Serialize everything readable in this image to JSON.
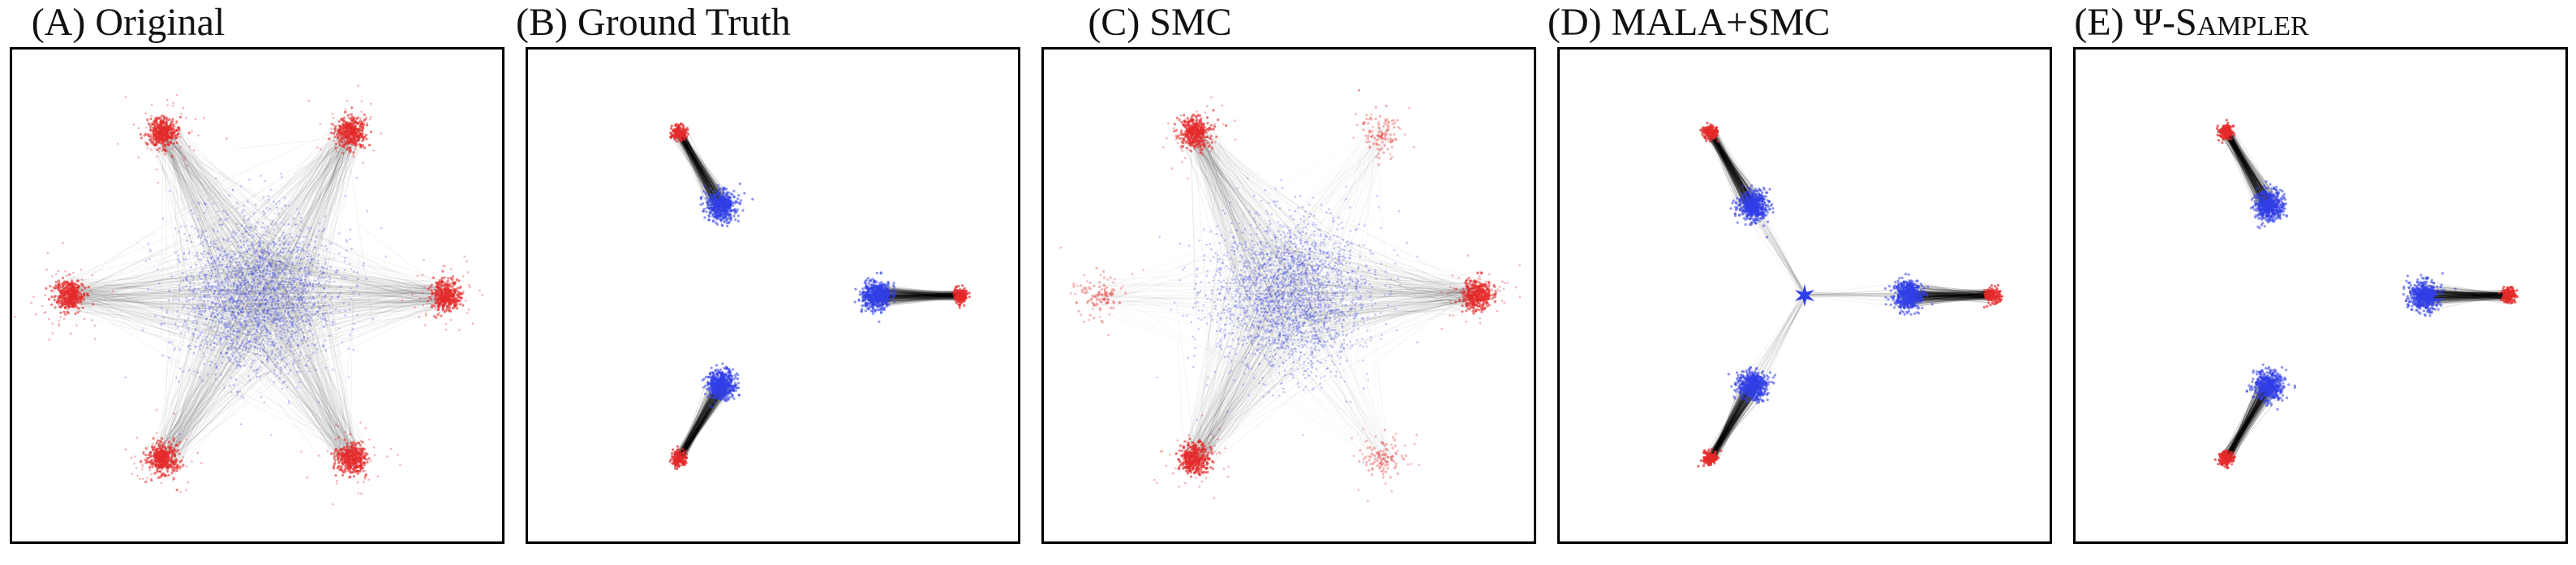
{
  "figure": {
    "panels": [
      {
        "id": "A",
        "title": "(A) Original",
        "title_sc": ""
      },
      {
        "id": "B",
        "title": "(B) Ground Truth",
        "title_sc": ""
      },
      {
        "id": "C",
        "title": "(C) SMC",
        "title_sc": ""
      },
      {
        "id": "D",
        "title": "(D) MALA+SMC",
        "title_sc": ""
      },
      {
        "id": "E",
        "title": "(E) Ψ-",
        "title_sc": "Sampler"
      }
    ]
  },
  "colors": {
    "source_points": "#2f3ee8",
    "target_points": "#e52a2a",
    "trajectories": "#000000",
    "frame": "#000000",
    "background": "#ffffff"
  },
  "chart_data": [
    {
      "panel": "A",
      "type": "scatter",
      "title": "(A) Original",
      "xlabel": "",
      "ylabel": "",
      "axes_visible": false,
      "series": [
        {
          "role": "source",
          "color": "blue",
          "clusters": [
            {
              "center": [
                0,
                0
              ],
              "spread": "wide"
            }
          ]
        },
        {
          "role": "target",
          "color": "red",
          "clusters": [
            {
              "center": [
                1,
                0
              ]
            },
            {
              "center": [
                0.5,
                0.866
              ]
            },
            {
              "center": [
                -0.5,
                0.866
              ]
            },
            {
              "center": [
                -1,
                0
              ]
            },
            {
              "center": [
                -0.5,
                -0.866
              ]
            },
            {
              "center": [
                0.5,
                -0.866
              ]
            }
          ]
        },
        {
          "role": "trajectories",
          "color": "black",
          "paths": "source-center to each of 6 target modes"
        }
      ]
    },
    {
      "panel": "B",
      "type": "scatter",
      "title": "(B) Ground Truth",
      "xlabel": "",
      "ylabel": "",
      "axes_visible": false,
      "series": [
        {
          "role": "source",
          "color": "blue",
          "clusters": [
            {
              "center": [
                0.55,
                0
              ]
            },
            {
              "center": [
                -0.275,
                0.476
              ]
            },
            {
              "center": [
                -0.275,
                -0.476
              ]
            }
          ]
        },
        {
          "role": "target",
          "color": "red",
          "clusters": [
            {
              "center": [
                1,
                0
              ]
            },
            {
              "center": [
                -0.5,
                0.866
              ]
            },
            {
              "center": [
                -0.5,
                -0.866
              ]
            }
          ]
        },
        {
          "role": "trajectories",
          "color": "black",
          "paths": "each blue cluster to its nearest red mode"
        }
      ]
    },
    {
      "panel": "C",
      "type": "scatter",
      "title": "(C) SMC",
      "xlabel": "",
      "ylabel": "",
      "axes_visible": false,
      "series": [
        {
          "role": "source",
          "color": "blue",
          "clusters": [
            {
              "center": [
                0,
                0
              ],
              "spread": "wide"
            }
          ]
        },
        {
          "role": "target",
          "color": "red",
          "clusters": [
            {
              "center": [
                1,
                0
              ],
              "weight": "heavy"
            },
            {
              "center": [
                0.5,
                0.866
              ],
              "weight": "light"
            },
            {
              "center": [
                -0.5,
                0.866
              ],
              "weight": "heavy"
            },
            {
              "center": [
                -1,
                0
              ],
              "weight": "light"
            },
            {
              "center": [
                -0.5,
                -0.866
              ],
              "weight": "heavy"
            },
            {
              "center": [
                0.5,
                -0.866
              ],
              "weight": "light"
            }
          ]
        },
        {
          "role": "trajectories",
          "color": "black",
          "paths": "source-center to target modes"
        }
      ]
    },
    {
      "panel": "D",
      "type": "scatter",
      "title": "(D) MALA+SMC",
      "xlabel": "",
      "ylabel": "",
      "axes_visible": false,
      "series": [
        {
          "role": "source",
          "color": "blue",
          "clusters": [
            {
              "center": [
                0.55,
                0
              ]
            },
            {
              "center": [
                -0.275,
                0.476
              ]
            },
            {
              "center": [
                -0.275,
                -0.476
              ]
            },
            {
              "center": [
                0,
                0
              ],
              "shape": "star"
            }
          ]
        },
        {
          "role": "target",
          "color": "red",
          "clusters": [
            {
              "center": [
                1,
                0
              ]
            },
            {
              "center": [
                -0.5,
                0.866
              ]
            },
            {
              "center": [
                -0.5,
                -0.866
              ]
            }
          ]
        },
        {
          "role": "trajectories",
          "color": "black",
          "paths": "each blue cluster to its nearest red mode"
        }
      ]
    },
    {
      "panel": "E",
      "type": "scatter",
      "title": "(E) Ψ-Sampler",
      "xlabel": "",
      "ylabel": "",
      "axes_visible": false,
      "series": [
        {
          "role": "source",
          "color": "blue",
          "clusters": [
            {
              "center": [
                0.55,
                0
              ]
            },
            {
              "center": [
                -0.275,
                0.476
              ]
            },
            {
              "center": [
                -0.275,
                -0.476
              ]
            }
          ]
        },
        {
          "role": "target",
          "color": "red",
          "clusters": [
            {
              "center": [
                1,
                0
              ]
            },
            {
              "center": [
                -0.5,
                0.866
              ]
            },
            {
              "center": [
                -0.5,
                -0.866
              ]
            }
          ]
        },
        {
          "role": "trajectories",
          "color": "black",
          "paths": "each blue cluster to its nearest red mode"
        }
      ]
    }
  ]
}
